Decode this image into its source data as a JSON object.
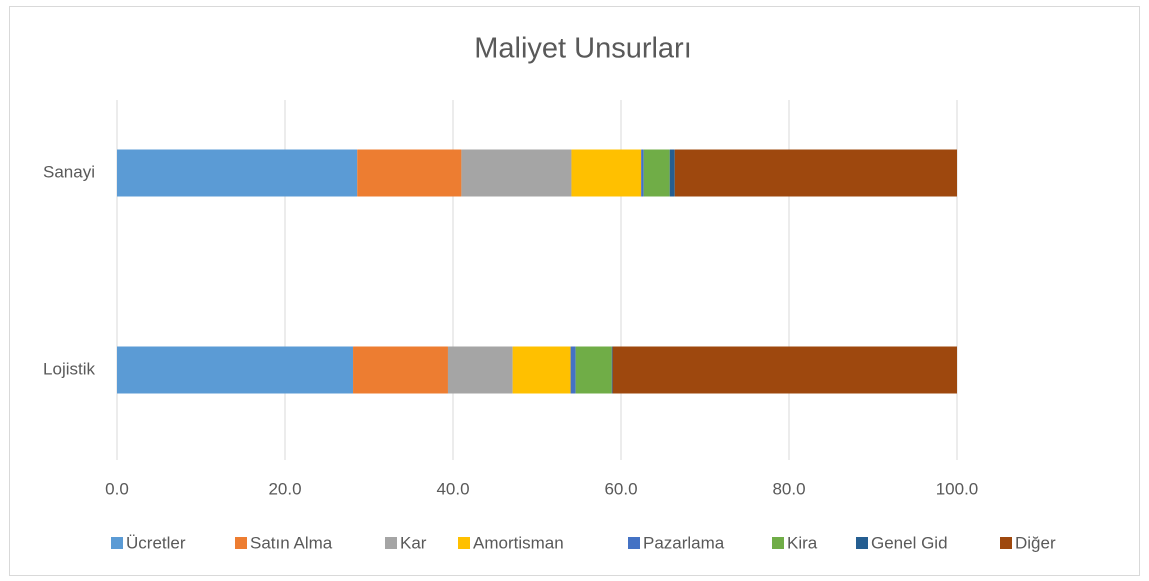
{
  "chart_data": {
    "type": "stacked-bar-horizontal",
    "title": "Maliyet Unsurları",
    "categories": [
      "Sanayi",
      "Lojistik"
    ],
    "series": [
      {
        "name": "Ücretler",
        "color": "#5b9bd5",
        "values": [
          28.6,
          28.1
        ]
      },
      {
        "name": "Satın Alma",
        "color": "#ed7d31",
        "values": [
          12.4,
          11.3
        ]
      },
      {
        "name": "Kar",
        "color": "#a5a5a5",
        "values": [
          13.1,
          7.7
        ]
      },
      {
        "name": "Amortisman",
        "color": "#ffc000",
        "values": [
          8.3,
          6.9
        ]
      },
      {
        "name": "Pazarlama",
        "color": "#4472c4",
        "values": [
          0.3,
          0.6
        ]
      },
      {
        "name": "Kira",
        "color": "#70ad47",
        "values": [
          3.1,
          4.3
        ]
      },
      {
        "name": "Genel Gid",
        "color": "#255e91",
        "values": [
          0.6,
          0.1
        ]
      },
      {
        "name": "Diğer",
        "color": "#9e480e",
        "values": [
          33.6,
          41.0
        ]
      }
    ],
    "xlim": [
      0,
      100
    ],
    "xticks": [
      {
        "value": 0,
        "label": "0.0"
      },
      {
        "value": 20,
        "label": "20.0"
      },
      {
        "value": 40,
        "label": "40.0"
      },
      {
        "value": 60,
        "label": "60.0"
      },
      {
        "value": 80,
        "label": "80.0"
      },
      {
        "value": 100,
        "label": "100.0"
      }
    ],
    "grid": true,
    "legend": "bottom"
  }
}
